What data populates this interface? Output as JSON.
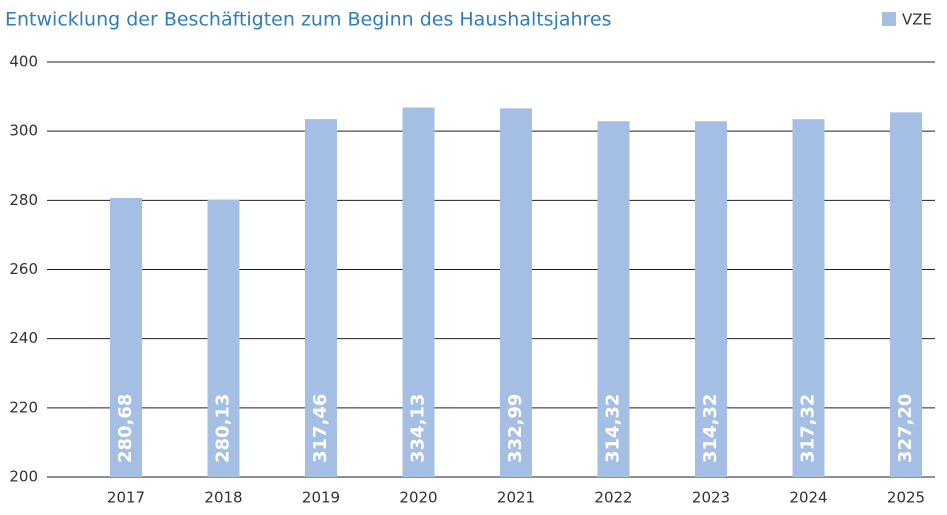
{
  "chart_data": {
    "type": "bar",
    "title": "Entwicklung der Beschäftigten zum Beginn des Haushaltsjahres",
    "categories": [
      "2017",
      "2018",
      "2019",
      "2020",
      "2021",
      "2022",
      "2023",
      "2024",
      "2025"
    ],
    "series": [
      {
        "name": "VZE",
        "color": "#a4bfe3",
        "values": [
          280.68,
          280.13,
          317.46,
          334.13,
          332.99,
          314.32,
          314.32,
          317.32,
          327.2
        ],
        "value_labels": [
          "280,68",
          "280,13",
          "317,46",
          "334,13",
          "332,99",
          "314,32",
          "314,32",
          "317,32",
          "327,20"
        ]
      }
    ],
    "ylim": [
      200,
      400
    ],
    "yticks": [
      200,
      220,
      240,
      260,
      280,
      300,
      400
    ],
    "grid": true,
    "legend": "top-right"
  }
}
